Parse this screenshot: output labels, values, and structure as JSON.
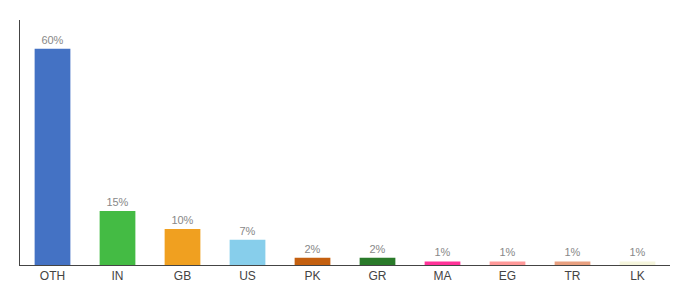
{
  "chart_data": {
    "type": "bar",
    "categories": [
      "OTH",
      "IN",
      "GB",
      "US",
      "PK",
      "GR",
      "MA",
      "EG",
      "TR",
      "LK"
    ],
    "values": [
      60,
      15,
      10,
      7,
      2,
      2,
      1,
      1,
      1,
      1
    ],
    "value_labels": [
      "60%",
      "15%",
      "10%",
      "7%",
      "2%",
      "2%",
      "1%",
      "1%",
      "1%",
      "1%"
    ],
    "colors": [
      "#4472c4",
      "#44bb44",
      "#f0a020",
      "#87ceeb",
      "#c46010",
      "#2a7a2a",
      "#ff3399",
      "#ff9999",
      "#e8a080",
      "#f5f5dc"
    ],
    "ylim": [
      0,
      68
    ],
    "grid": false,
    "data_labels": true,
    "tick_labels": "x"
  }
}
